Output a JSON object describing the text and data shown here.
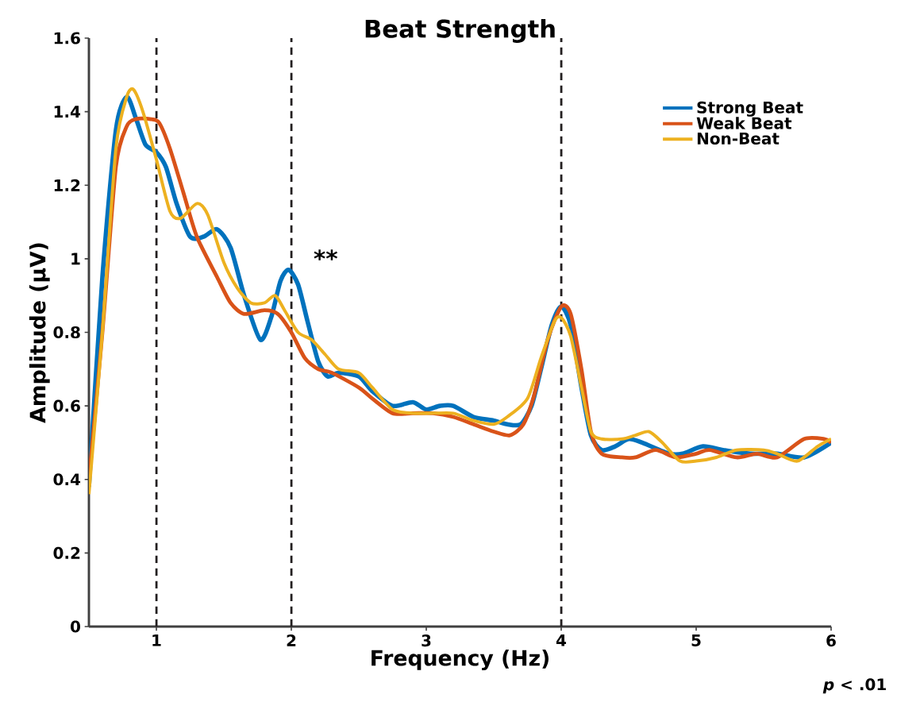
{
  "chart_data": {
    "type": "line",
    "title": "Beat Strength",
    "xlabel": "Frequency (Hz)",
    "ylabel": "Amplitude (μV)",
    "xlim": [
      0.5,
      6
    ],
    "xticks": [
      1,
      2,
      3,
      4,
      5,
      6
    ],
    "ylim": [
      0,
      1.6
    ],
    "yticks": [
      0,
      0.2,
      0.4,
      0.6,
      0.8,
      1,
      1.2,
      1.4,
      1.6
    ],
    "grid": false,
    "legend": "top right",
    "marker": "none",
    "line_style": "solid",
    "ref_lines": [
      {
        "axis": "x",
        "value": 1,
        "color": "#231f20",
        "line_style": "dashed"
      },
      {
        "axis": "x",
        "value": 2,
        "color": "#231f20",
        "line_style": "dashed"
      },
      {
        "axis": "x",
        "value": 4,
        "color": "#231f20",
        "line_style": "dashed"
      }
    ],
    "annotations": [
      "**",
      "*p* < .01"
    ],
    "series": [
      {
        "name": "Strong Beat",
        "color": "#0072bd",
        "x": [
          0.5,
          0.6,
          0.7,
          0.78,
          0.85,
          0.92,
          1.0,
          1.07,
          1.15,
          1.25,
          1.35,
          1.45,
          1.55,
          1.65,
          1.77,
          1.85,
          1.92,
          1.98,
          2.05,
          2.12,
          2.2,
          2.27,
          2.35,
          2.5,
          2.6,
          2.75,
          2.9,
          3.0,
          3.1,
          3.2,
          3.35,
          3.5,
          3.6,
          3.7,
          3.78,
          3.85,
          3.93,
          4.0,
          4.07,
          4.15,
          4.22,
          4.3,
          4.4,
          4.5,
          4.6,
          4.8,
          4.9,
          5.05,
          5.2,
          5.4,
          5.6,
          5.8,
          6.0
        ],
        "values": [
          0.38,
          0.95,
          1.35,
          1.44,
          1.38,
          1.31,
          1.29,
          1.25,
          1.15,
          1.06,
          1.06,
          1.08,
          1.03,
          0.9,
          0.78,
          0.84,
          0.94,
          0.97,
          0.93,
          0.83,
          0.72,
          0.68,
          0.69,
          0.68,
          0.64,
          0.6,
          0.61,
          0.59,
          0.6,
          0.6,
          0.57,
          0.56,
          0.55,
          0.55,
          0.6,
          0.7,
          0.82,
          0.87,
          0.82,
          0.65,
          0.52,
          0.48,
          0.49,
          0.51,
          0.5,
          0.47,
          0.47,
          0.49,
          0.48,
          0.47,
          0.47,
          0.46,
          0.5
        ]
      },
      {
        "name": "Weak Beat",
        "color": "#d95319",
        "x": [
          0.5,
          0.6,
          0.7,
          0.78,
          0.85,
          0.95,
          1.02,
          1.1,
          1.2,
          1.3,
          1.45,
          1.55,
          1.65,
          1.8,
          1.9,
          2.0,
          2.1,
          2.2,
          2.3,
          2.5,
          2.6,
          2.75,
          2.9,
          3.05,
          3.2,
          3.35,
          3.5,
          3.62,
          3.72,
          3.8,
          3.9,
          4.0,
          4.07,
          4.15,
          4.22,
          4.3,
          4.45,
          4.55,
          4.7,
          4.85,
          5.0,
          5.1,
          5.3,
          5.45,
          5.6,
          5.8,
          5.95,
          6.0
        ],
        "values": [
          0.4,
          0.8,
          1.25,
          1.36,
          1.38,
          1.38,
          1.37,
          1.3,
          1.18,
          1.06,
          0.95,
          0.88,
          0.85,
          0.86,
          0.85,
          0.8,
          0.73,
          0.7,
          0.69,
          0.65,
          0.62,
          0.58,
          0.58,
          0.58,
          0.57,
          0.55,
          0.53,
          0.52,
          0.55,
          0.63,
          0.78,
          0.87,
          0.85,
          0.7,
          0.53,
          0.47,
          0.46,
          0.46,
          0.48,
          0.46,
          0.47,
          0.48,
          0.46,
          0.47,
          0.46,
          0.51,
          0.51,
          0.5
        ]
      },
      {
        "name": "Non-Beat",
        "color": "#edb120",
        "x": [
          0.5,
          0.6,
          0.7,
          0.78,
          0.83,
          0.9,
          1.0,
          1.1,
          1.18,
          1.3,
          1.38,
          1.5,
          1.6,
          1.7,
          1.8,
          1.88,
          1.95,
          2.05,
          2.15,
          2.25,
          2.35,
          2.5,
          2.6,
          2.75,
          2.9,
          3.05,
          3.2,
          3.35,
          3.5,
          3.6,
          3.75,
          3.85,
          3.95,
          4.0,
          4.07,
          4.15,
          4.22,
          4.3,
          4.45,
          4.55,
          4.65,
          4.75,
          4.88,
          5.0,
          5.15,
          5.3,
          5.5,
          5.6,
          5.75,
          5.9,
          6.0
        ],
        "values": [
          0.36,
          0.8,
          1.3,
          1.44,
          1.46,
          1.4,
          1.27,
          1.13,
          1.11,
          1.15,
          1.12,
          0.99,
          0.92,
          0.88,
          0.88,
          0.9,
          0.86,
          0.8,
          0.78,
          0.74,
          0.7,
          0.69,
          0.65,
          0.59,
          0.58,
          0.58,
          0.58,
          0.56,
          0.55,
          0.57,
          0.62,
          0.73,
          0.83,
          0.84,
          0.79,
          0.65,
          0.53,
          0.51,
          0.51,
          0.52,
          0.53,
          0.5,
          0.45,
          0.45,
          0.46,
          0.48,
          0.48,
          0.47,
          0.45,
          0.49,
          0.51
        ]
      }
    ]
  }
}
